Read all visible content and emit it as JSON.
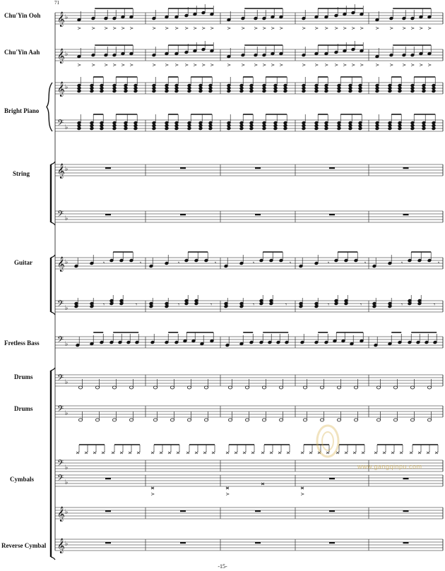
{
  "page": {
    "measure_number": "71",
    "page_number": "-15-"
  },
  "instruments": [
    {
      "label": "Chu'Yin Ooh"
    },
    {
      "label": "Chu'Yin Aah"
    },
    {
      "label": "Bright Piano"
    },
    {
      "label": "String"
    },
    {
      "label": "Guitar"
    },
    {
      "label": "Fretless Bass"
    },
    {
      "label": "Drums"
    },
    {
      "label": "Drums"
    },
    {
      "label": "Cymbals"
    },
    {
      "label": "Reverse Cymbal"
    }
  ],
  "watermark": {
    "url": "www.gangqinpu.com",
    "logo_text": "虫虫钢琴"
  },
  "colors": {
    "ink": "#111111",
    "watermark": "#d8b24a"
  }
}
